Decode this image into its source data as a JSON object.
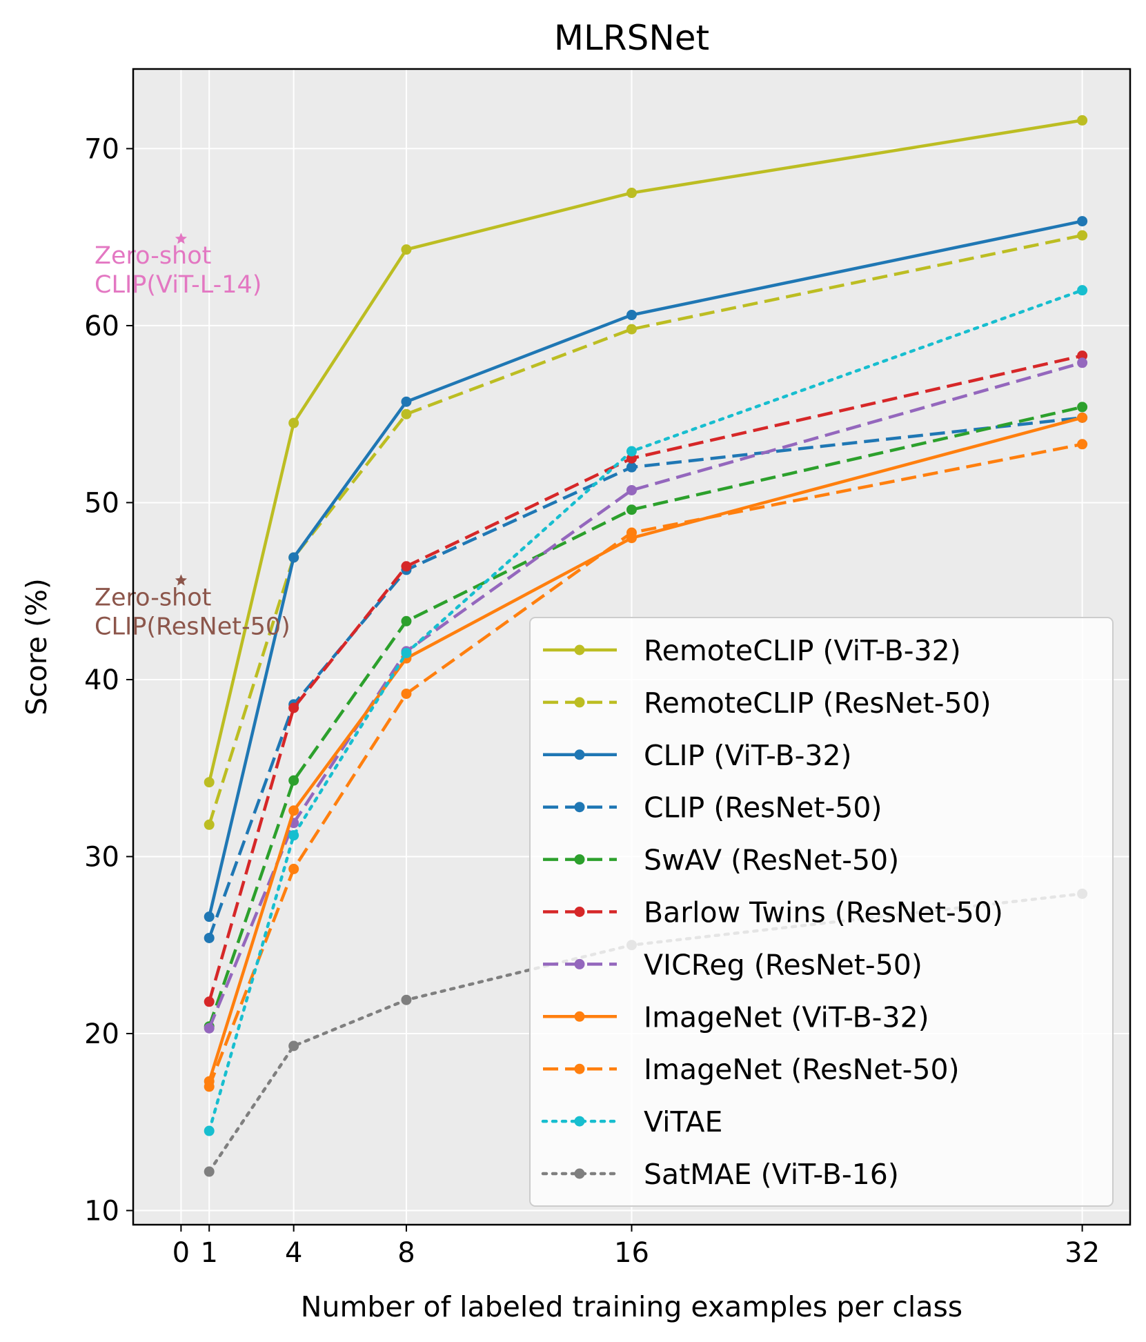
{
  "chart_data": {
    "type": "line",
    "title": "MLRSNet",
    "xlabel": "Number of labeled training examples per class",
    "ylabel": "Score (%)",
    "xlim": [
      -1.7,
      33.7
    ],
    "ylim": [
      9.2,
      74.5
    ],
    "xticks": [
      0,
      1,
      4,
      8,
      16,
      32
    ],
    "yticks": [
      10,
      20,
      30,
      40,
      50,
      60,
      70
    ],
    "grid": true,
    "legend_position": "lower right",
    "x": [
      1,
      4,
      8,
      16,
      32
    ],
    "series": [
      {
        "name": "RemoteCLIP (ViT-B-32)",
        "color": "#bcbd22",
        "style": "solid",
        "values": [
          34.2,
          54.5,
          64.3,
          67.5,
          71.6
        ]
      },
      {
        "name": "RemoteCLIP (ResNet-50)",
        "color": "#bcbd22",
        "style": "dashed",
        "values": [
          31.8,
          46.9,
          55.0,
          59.8,
          65.1
        ]
      },
      {
        "name": "CLIP (ViT-B-32)",
        "color": "#1f77b4",
        "style": "solid",
        "values": [
          26.6,
          46.9,
          55.7,
          60.6,
          65.9
        ]
      },
      {
        "name": "CLIP (ResNet-50)",
        "color": "#1f77b4",
        "style": "dashed",
        "values": [
          25.4,
          38.6,
          46.2,
          52.0,
          54.8
        ]
      },
      {
        "name": "SwAV (ResNet-50)",
        "color": "#2ca02c",
        "style": "dashed",
        "values": [
          20.4,
          34.3,
          43.3,
          49.6,
          55.4
        ]
      },
      {
        "name": "Barlow Twins (ResNet-50)",
        "color": "#d62728",
        "style": "dashed",
        "values": [
          21.8,
          38.4,
          46.4,
          52.5,
          58.3
        ]
      },
      {
        "name": "VICReg (ResNet-50)",
        "color": "#9467bd",
        "style": "dashed",
        "values": [
          20.3,
          31.9,
          41.6,
          50.7,
          57.9
        ]
      },
      {
        "name": "ImageNet (ViT-B-32)",
        "color": "#ff7f0e",
        "style": "solid",
        "values": [
          17.3,
          32.6,
          41.2,
          48.0,
          54.8
        ]
      },
      {
        "name": "ImageNet (ResNet-50)",
        "color": "#ff7f0e",
        "style": "dashed",
        "values": [
          17.0,
          29.3,
          39.2,
          48.3,
          53.3
        ]
      },
      {
        "name": "ViTAE",
        "color": "#17becf",
        "style": "dotted",
        "values": [
          14.5,
          31.2,
          41.5,
          52.9,
          62.0
        ]
      },
      {
        "name": "SatMAE (ViT-B-16)",
        "color": "#7f7f7f",
        "style": "dotted",
        "values": [
          12.2,
          19.3,
          21.9,
          25.0,
          27.9
        ]
      }
    ],
    "annotations": [
      {
        "label_line1": "Zero-shot",
        "label_line2": "CLIP(ViT-L-14)",
        "x": 0,
        "y": 64.9,
        "color": "#e377c2"
      },
      {
        "label_line1": "Zero-shot",
        "label_line2": "CLIP(ResNet-50)",
        "x": 0,
        "y": 45.6,
        "color": "#8c564b"
      }
    ]
  }
}
